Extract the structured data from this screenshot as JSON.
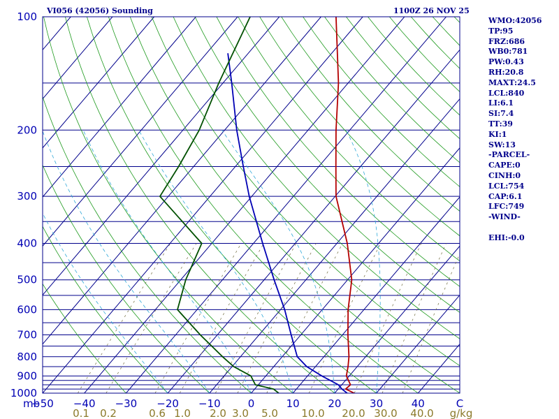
{
  "chart_data": {
    "type": "line",
    "title": "VI056 (42056) Sounding",
    "valid_time": "1100Z 26 NOV 25",
    "xlim": [
      -50,
      50
    ],
    "ylim_hpa": [
      1000,
      100
    ],
    "y_scale": "log-pressure (skew-T)",
    "pressure_ticks": [
      "100",
      "200",
      "300",
      "400",
      "500",
      "600",
      "700",
      "800",
      "900",
      "1000"
    ],
    "temp_ticks": [
      "−50",
      "−40",
      "−30",
      "−20",
      "−10",
      "0",
      "10",
      "20",
      "30",
      "40",
      "C"
    ],
    "mixing_ratio_ticks": [
      "0.1",
      "0.2",
      "0.6",
      "1.0",
      "2.0",
      "3.0",
      "5.0",
      "10.0",
      "20.0",
      "30.0",
      "40.0",
      "g/kg"
    ],
    "corner_label": "mb",
    "series": [
      {
        "color": "#b40000",
        "points": [
          [
            1000,
            24.7
          ],
          [
            975,
            21.8
          ],
          [
            950,
            22.1
          ],
          [
            900,
            19.3
          ],
          [
            850,
            17.8
          ],
          [
            800,
            16.0
          ],
          [
            700,
            11.3
          ],
          [
            600,
            6.2
          ],
          [
            500,
            1.0
          ],
          [
            400,
            -7.5
          ],
          [
            300,
            -19.8
          ],
          [
            250,
            -25.9
          ],
          [
            200,
            -33.3
          ],
          [
            150,
            -42.3
          ],
          [
            100,
            -56.4
          ]
        ]
      },
      {
        "color": "#0000b4",
        "points": [
          [
            1000,
            23.0
          ],
          [
            975,
            20.9
          ],
          [
            950,
            19.2
          ],
          [
            900,
            13.4
          ],
          [
            850,
            7.9
          ],
          [
            800,
            3.6
          ],
          [
            700,
            -2.3
          ],
          [
            600,
            -9.0
          ],
          [
            500,
            -17.6
          ],
          [
            400,
            -27.8
          ],
          [
            300,
            -40.6
          ],
          [
            250,
            -48.1
          ],
          [
            200,
            -57.1
          ],
          [
            150,
            -67.9
          ],
          [
            125,
            -74.9
          ]
        ]
      },
      {
        "color": "#005000",
        "points": [
          [
            1000,
            6.6
          ],
          [
            975,
            4.5
          ],
          [
            950,
            -0.7
          ],
          [
            900,
            -3.6
          ],
          [
            850,
            -9.6
          ],
          [
            800,
            -14.3
          ],
          [
            700,
            -24.1
          ],
          [
            600,
            -34.7
          ],
          [
            500,
            -38.8
          ],
          [
            400,
            -42.4
          ],
          [
            300,
            -62.0
          ],
          [
            250,
            -63.6
          ],
          [
            200,
            -66.1
          ],
          [
            150,
            -71.0
          ],
          [
            100,
            -77.0
          ]
        ]
      }
    ]
  },
  "stats": [
    "WMO:42056",
    "TP:95",
    "FRZ:686",
    "WB0:781",
    "PW:0.43",
    "RH:20.8",
    "MAXT:24.5",
    "LCL:840",
    "LI:6.1",
    "SI:7.4",
    "TT:39",
    "KI:1",
    "SW:13",
    "-PARCEL-",
    "CAPE:0",
    "CINH:0",
    "LCL:754",
    "CAP:6.1",
    "LFC:749",
    "-WIND-",
    "",
    "EHI:-0.0"
  ]
}
